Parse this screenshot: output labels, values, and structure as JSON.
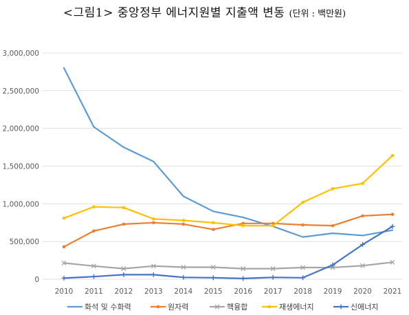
{
  "header": {
    "title": "<그림1> 중앙정부 에너지원별 지출액 변동",
    "unit": "(단위 : 백만원)"
  },
  "chart_data": {
    "type": "line",
    "title": "<그림1> 중앙정부 에너지원별 지출액 변동",
    "unit_label": "(단위 : 백만원)",
    "xlabel": "",
    "ylabel": "",
    "categories": [
      "2010",
      "2011",
      "2012",
      "2013",
      "2014",
      "2015",
      "2016",
      "2017",
      "2018",
      "2019",
      "2020",
      "2021"
    ],
    "ylim": [
      0,
      3000000
    ],
    "yticks": [
      0,
      500000,
      1000000,
      1500000,
      2000000,
      2500000,
      3000000
    ],
    "ytick_labels": [
      "0",
      "500,000",
      "1,000,000",
      "1,500,000",
      "2,000,000",
      "2,500,000",
      "3,000,000"
    ],
    "grid": true,
    "legend_position": "bottom",
    "series": [
      {
        "name": "화석 및 수화력",
        "color": "#5B9BD5",
        "marker": "none",
        "values": [
          2800000,
          2020000,
          1750000,
          1560000,
          1100000,
          900000,
          820000,
          700000,
          560000,
          610000,
          580000,
          650000
        ]
      },
      {
        "name": "원자력",
        "color": "#ED7D31",
        "marker": "dot",
        "values": [
          430000,
          640000,
          730000,
          750000,
          730000,
          660000,
          740000,
          740000,
          720000,
          710000,
          840000,
          860000
        ]
      },
      {
        "name": "핵융합",
        "color": "#A5A5A5",
        "marker": "x",
        "values": [
          215000,
          175000,
          140000,
          175000,
          160000,
          160000,
          140000,
          140000,
          155000,
          155000,
          180000,
          225000
        ]
      },
      {
        "name": "재생에너지",
        "color": "#FFC000",
        "marker": "dot",
        "values": [
          810000,
          960000,
          950000,
          800000,
          780000,
          750000,
          710000,
          710000,
          1020000,
          1200000,
          1270000,
          1640000
        ]
      },
      {
        "name": "신에너지",
        "color": "#4472C4",
        "marker": "plus",
        "values": [
          15000,
          35000,
          60000,
          60000,
          25000,
          20000,
          10000,
          25000,
          20000,
          190000,
          460000,
          700000
        ]
      }
    ]
  }
}
